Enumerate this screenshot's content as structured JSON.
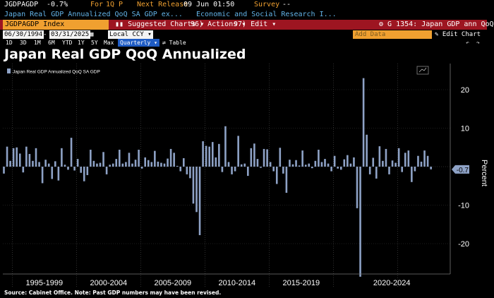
{
  "header": {
    "ticker": "JGDPAGDP",
    "last_value": "-0.7%",
    "for_label": "For",
    "period": "1Q P",
    "next_release_label": "Next Release",
    "next_release": "09 Jun 01:50",
    "survey_label": "Survey",
    "survey_value": "--",
    "description": "Japan Real GDP Annualized QoQ SA GDP ex...",
    "source_name": "Economic and Social Research I..."
  },
  "toolbar": {
    "security": "JGDPAGDP Index",
    "suggested_charts": "Suggested Charts",
    "actions_num": "96)",
    "actions": "Actions",
    "edit_num": "97)",
    "edit": "Edit",
    "chart_id": "G 1354: Japan GDP ann QoQ"
  },
  "controls": {
    "start_date": "06/30/1994",
    "end_date": "03/31/2025",
    "currency": "Local CCY",
    "add_data_placeholder": "Add Data",
    "edit_chart": "Edit Chart"
  },
  "ranges": {
    "items": [
      "1D",
      "3D",
      "1M",
      "6M",
      "YTD",
      "1Y",
      "5Y",
      "Max"
    ],
    "frequency": "Quarterly",
    "table": "Table"
  },
  "chart_title": "Japan Real GDP QoQ Annualized",
  "source_note": "Source: Cabinet Office. Note: Past GDP numbers may have been revised.",
  "colors": {
    "bar": "#8ea2c6",
    "accent": "#f0a030",
    "toolbar_red": "#9d1521",
    "last_value_box": "#8ea2c6"
  },
  "chart_data": {
    "type": "bar",
    "series": [
      {
        "name": "Japan Real GDP Annualized QoQ SA GDP",
        "start": "1994Q2",
        "values": [
          -1.8,
          5.2,
          1.5,
          4.8,
          5.0,
          3.4,
          -1.5,
          5.2,
          3.3,
          1.5,
          4.8,
          1.2,
          -4.3,
          1.8,
          0.8,
          -3.2,
          1.4,
          -3.6,
          4.8,
          0.5,
          -0.8,
          7.5,
          -1.0,
          2.0,
          -1.6,
          -3.8,
          -2.2,
          4.4,
          1.5,
          0.8,
          1.0,
          3.8,
          -2.0,
          0.5,
          0.8,
          2.0,
          4.4,
          0.8,
          1.2,
          3.6,
          0.8,
          1.8,
          4.4,
          -0.5,
          2.4,
          1.7,
          1.2,
          4.1,
          1.3,
          1.0,
          0.8,
          2.1,
          4.6,
          3.6,
          0.2,
          -1.2,
          2.2,
          -2.0,
          -3.0,
          -9.6,
          -11.8,
          -17.8,
          6.6,
          5.4,
          5.2,
          6.4,
          2.4,
          5.9,
          -1.4,
          10.5,
          1.2,
          -2.0,
          -1.2,
          8.0,
          0.6,
          0.8,
          -2.4,
          4.8,
          6.0,
          2.0,
          -0.3,
          4.6,
          4.5,
          1.2,
          -1.2,
          -4.5,
          4.9,
          -1.8,
          -6.8,
          1.8,
          0.6,
          1.7,
          0.3,
          4.2,
          0.5,
          0.8,
          -0.4,
          1.5,
          4.4,
          1.2,
          2.0,
          0.8,
          -1.2,
          2.8,
          -0.5,
          -0.8,
          1.9,
          3.0,
          0.8,
          2.4,
          -10.8,
          -28.6,
          23.0,
          8.3,
          -2.0,
          2.3,
          -3.1,
          5.3,
          1.5,
          4.6,
          -2.0,
          1.6,
          1.0,
          4.8,
          -1.4,
          3.6,
          4.2,
          -4.0,
          -1.2,
          2.8,
          1.3,
          4.2,
          2.8,
          -0.7
        ]
      }
    ],
    "x_tick_labels": [
      "1995-1999",
      "2000-2004",
      "2005-2009",
      "2010-2014",
      "2015-2019",
      "2020-2024"
    ],
    "x_tick_start_years": [
      1995,
      2000,
      2005,
      2010,
      2015,
      2020
    ],
    "y_ticks": [
      20,
      10,
      -10,
      -20
    ],
    "ylim": [
      -30,
      26
    ],
    "ylabel": "Percent",
    "last_value_label": "-0.7",
    "grid": true,
    "legend_position": "top-left"
  }
}
